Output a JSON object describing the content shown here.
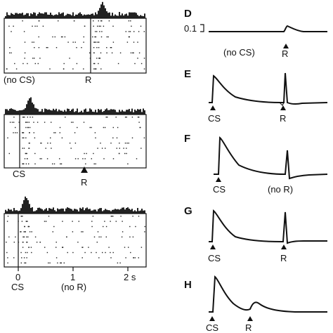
{
  "left_panels": {
    "top": {
      "labels": {
        "no_cs": "(no CS)",
        "r": "R"
      }
    },
    "middle": {
      "labels": {
        "cs": "CS",
        "r": "R"
      }
    },
    "bottom": {
      "labels": {
        "cs": "CS",
        "no_r": "(no R)"
      }
    },
    "x_axis": {
      "ticks": [
        "0",
        "1",
        "2 s"
      ]
    }
  },
  "right_panels": {
    "scale_label": "0.1",
    "panels": [
      {
        "letter": "D",
        "labels": [
          "(no CS)",
          "R"
        ]
      },
      {
        "letter": "E",
        "labels": [
          "CS",
          "R"
        ]
      },
      {
        "letter": "F",
        "labels": [
          "CS",
          "(no R)"
        ]
      },
      {
        "letter": "G",
        "labels": [
          "CS",
          "R"
        ]
      },
      {
        "letter": "H",
        "labels": [
          "CS",
          "R"
        ]
      }
    ]
  },
  "colors": {
    "ink": "#111111",
    "background": "#ffffff"
  }
}
